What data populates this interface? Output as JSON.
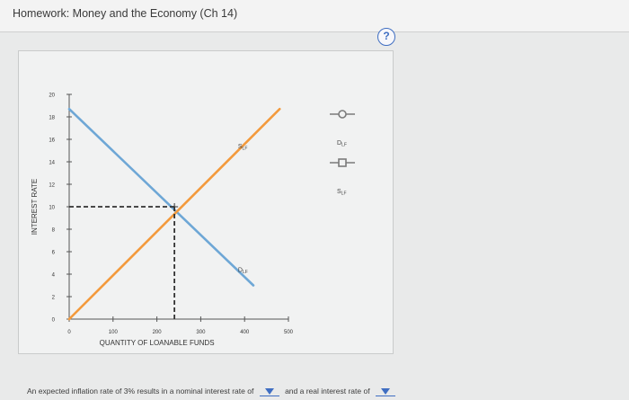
{
  "window": {
    "title": "Homework: Money and the Economy (Ch 14)"
  },
  "help": {
    "icon": "question-icon",
    "symbol": "?"
  },
  "colors": {
    "demand": "#6ea7d6",
    "supply": "#f39a3d",
    "dashed": "#333333",
    "help": "#3f6ec2"
  },
  "chart_data": {
    "type": "line",
    "xlabel": "QUANTITY OF LOANABLE FUNDS",
    "ylabel": "INTEREST RATE",
    "xlim": [
      0,
      500
    ],
    "ylim": [
      0,
      20
    ],
    "x_ticks": [
      "0",
      "100",
      "200",
      "300",
      "400",
      "500"
    ],
    "y_ticks": [
      "0",
      "2",
      "4",
      "6",
      "8",
      "10",
      "12",
      "14",
      "16",
      "18",
      "20"
    ],
    "series": [
      {
        "name": "D_LF",
        "color": "#6ea7d6",
        "points": [
          [
            0,
            18.7
          ],
          [
            420,
            3
          ]
        ],
        "label_base": "D",
        "label_sub": "LF"
      },
      {
        "name": "S_LF",
        "color": "#f39a3d",
        "points": [
          [
            0,
            0
          ],
          [
            480,
            18.7
          ]
        ],
        "label_base": "S",
        "label_sub": "LF"
      }
    ],
    "equilibrium": {
      "x": 240,
      "y": 10
    }
  },
  "legend": [
    {
      "label_base": "D",
      "label_sub": "LF",
      "marker": "circle"
    },
    {
      "label_base": "S",
      "label_sub": "LF",
      "marker": "square"
    }
  ],
  "question": {
    "part1": "An expected inflation rate of 3% results in a nominal interest rate of",
    "part2": "and a real interest rate of"
  }
}
